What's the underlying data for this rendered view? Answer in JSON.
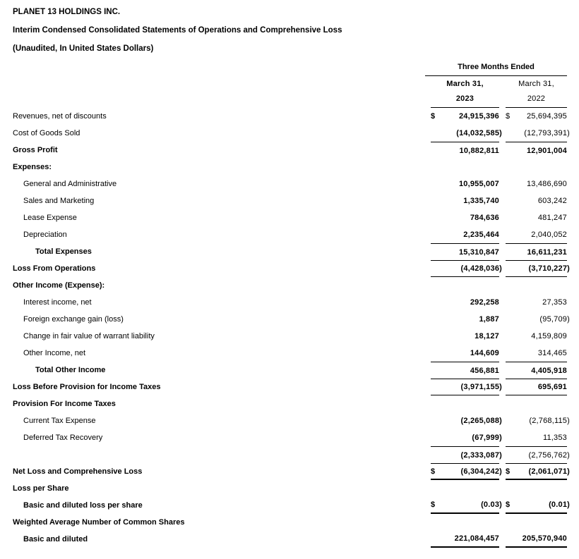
{
  "header": {
    "company": "PLANET 13 HOLDINGS INC.",
    "title": "Interim Condensed Consolidated Statements of Operations and Comprehensive Loss",
    "subtitle": "(Unaudited, In United States Dollars)"
  },
  "table": {
    "period_header": "Three Months Ended",
    "currency_symbol": "$",
    "columns": [
      {
        "line1": "March 31,",
        "line2": "2023"
      },
      {
        "line1": "March 31,",
        "line2": "2022"
      }
    ],
    "rows": [
      {
        "label": "Revenues, net of discounts",
        "indent": 0,
        "boldLabel": false,
        "dollar": true,
        "v2023": "24,915,396",
        "v2022": "25,694,395",
        "b2023": true,
        "b2022": false
      },
      {
        "label": "Cost of Goods Sold",
        "indent": 0,
        "boldLabel": false,
        "v2023": "(14,032,585)",
        "v2022": "(12,793,391)",
        "b2023": true,
        "b2022": false
      },
      {
        "label": "Gross Profit",
        "indent": 0,
        "boldLabel": true,
        "v2023": "10,882,811",
        "v2022": "12,901,004",
        "b2023": true,
        "b2022": true,
        "topLine": true
      },
      {
        "label": "Expenses:",
        "indent": 0,
        "boldLabel": true
      },
      {
        "label": "General and Administrative",
        "indent": 1,
        "boldLabel": false,
        "v2023": "10,955,007",
        "v2022": "13,486,690",
        "b2023": true,
        "b2022": false
      },
      {
        "label": "Sales and Marketing",
        "indent": 1,
        "boldLabel": false,
        "v2023": "1,335,740",
        "v2022": "603,242",
        "b2023": true,
        "b2022": false
      },
      {
        "label": "Lease Expense",
        "indent": 1,
        "boldLabel": false,
        "v2023": "784,636",
        "v2022": "481,247",
        "b2023": true,
        "b2022": false
      },
      {
        "label": "Depreciation",
        "indent": 1,
        "boldLabel": false,
        "v2023": "2,235,464",
        "v2022": "2,040,052",
        "b2023": true,
        "b2022": false
      },
      {
        "label": "Total Expenses",
        "indent": 2,
        "boldLabel": true,
        "v2023": "15,310,847",
        "v2022": "16,611,231",
        "b2023": true,
        "b2022": true,
        "topLine": true
      },
      {
        "label": "Loss From Operations",
        "indent": 0,
        "boldLabel": true,
        "v2023": "(4,428,036)",
        "v2022": "(3,710,227)",
        "b2023": true,
        "b2022": true,
        "topLine": true,
        "bottomLine": true
      },
      {
        "label": "Other Income (Expense):",
        "indent": 0,
        "boldLabel": true
      },
      {
        "label": "Interest income, net",
        "indent": 1,
        "boldLabel": false,
        "v2023": "292,258",
        "v2022": "27,353",
        "b2023": true,
        "b2022": false
      },
      {
        "label": "Foreign exchange gain (loss)",
        "indent": 1,
        "boldLabel": false,
        "v2023": "1,887",
        "v2022": "(95,709)",
        "b2023": true,
        "b2022": false
      },
      {
        "label": "Change in fair value of warrant liability",
        "indent": 1,
        "boldLabel": false,
        "v2023": "18,127",
        "v2022": "4,159,809",
        "b2023": true,
        "b2022": false
      },
      {
        "label": "Other Income, net",
        "indent": 1,
        "boldLabel": false,
        "v2023": "144,609",
        "v2022": "314,465",
        "b2023": true,
        "b2022": false
      },
      {
        "label": "Total Other Income",
        "indent": 2,
        "boldLabel": true,
        "v2023": "456,881",
        "v2022": "4,405,918",
        "b2023": true,
        "b2022": true,
        "topLine": true
      },
      {
        "label": "Loss Before Provision for Income Taxes",
        "indent": 0,
        "boldLabel": true,
        "v2023": "(3,971,155)",
        "v2022": "695,691",
        "b2023": true,
        "b2022": true,
        "topLine": true,
        "bottomLine": true
      },
      {
        "label": "Provision For Income Taxes",
        "indent": 0,
        "boldLabel": true
      },
      {
        "label": "Current Tax Expense",
        "indent": 1,
        "boldLabel": false,
        "v2023": "(2,265,088)",
        "v2022": "(2,768,115)",
        "b2023": true,
        "b2022": false
      },
      {
        "label": "Deferred Tax Recovery",
        "indent": 1,
        "boldLabel": false,
        "v2023": "(67,999)",
        "v2022": "11,353",
        "b2023": true,
        "b2022": false
      },
      {
        "label": "",
        "indent": 0,
        "boldLabel": false,
        "v2023": "(2,333,087)",
        "v2022": "(2,756,762)",
        "b2023": true,
        "b2022": false,
        "topLine": true
      },
      {
        "label": "Net Loss and Comprehensive Loss",
        "indent": 0,
        "boldLabel": true,
        "dollar": true,
        "v2023": "(6,304,242)",
        "v2022": "(2,061,071)",
        "b2023": true,
        "b2022": true,
        "topLine": true,
        "thickLine": true
      },
      {
        "label": "Loss per Share",
        "indent": 0,
        "boldLabel": true
      },
      {
        "label": "Basic and diluted loss per share",
        "indent": 1,
        "boldLabel": true,
        "dollar": true,
        "v2023": "(0.03)",
        "v2022": "(0.01)",
        "b2023": true,
        "b2022": true,
        "thickLine": true
      },
      {
        "label": "Weighted Average Number of Common Shares",
        "indent": 0,
        "boldLabel": true
      },
      {
        "label": "Basic and diluted",
        "indent": 1,
        "boldLabel": true,
        "v2023": "221,084,457",
        "v2022": "205,570,940",
        "b2023": true,
        "b2022": true,
        "thickLine": true
      }
    ]
  },
  "colors": {
    "text": "#000000",
    "background": "#ffffff",
    "line": "#000000"
  }
}
